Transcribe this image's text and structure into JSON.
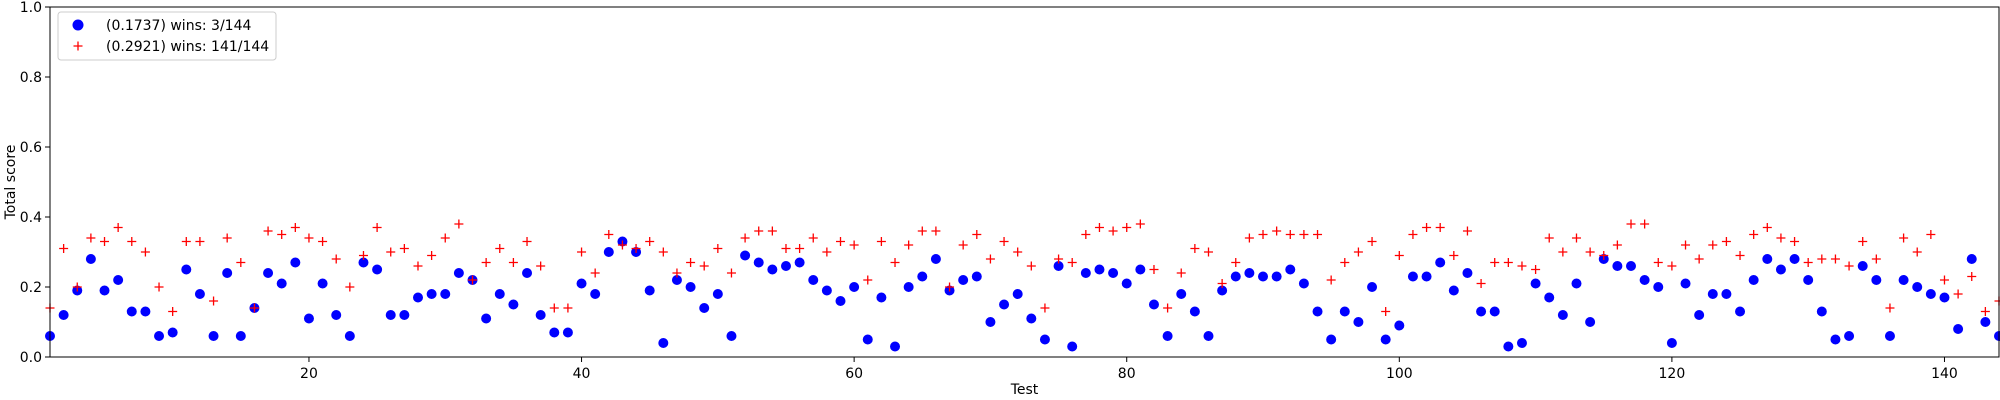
{
  "chart_data": {
    "type": "scatter",
    "xlabel": "Test",
    "ylabel": "Total score",
    "xlim": [
      1,
      144
    ],
    "ylim": [
      0,
      1
    ],
    "x_ticks": [
      20,
      40,
      60,
      80,
      100,
      120,
      140
    ],
    "y_ticks": [
      0.0,
      0.2,
      0.4,
      0.6,
      0.8,
      1.0
    ],
    "y_tick_labels": [
      "0.0",
      "0.2",
      "0.4",
      "0.6",
      "0.8",
      "1.0"
    ],
    "legend_position": "top-left",
    "grid": false,
    "series": [
      {
        "name": "(0.1737) wins: 3/144",
        "marker": "circle",
        "color": "#0000ff",
        "values": [
          0.06,
          0.12,
          0.19,
          0.28,
          0.19,
          0.22,
          0.13,
          0.13,
          0.06,
          0.07,
          0.25,
          0.18,
          0.06,
          0.24,
          0.06,
          0.14,
          0.24,
          0.21,
          0.27,
          0.11,
          0.21,
          0.12,
          0.06,
          0.27,
          0.25,
          0.12,
          0.12,
          0.17,
          0.18,
          0.18,
          0.24,
          0.22,
          0.11,
          0.18,
          0.15,
          0.24,
          0.12,
          0.07,
          0.07,
          0.21,
          0.18,
          0.3,
          0.33,
          0.3,
          0.19,
          0.04,
          0.22,
          0.2,
          0.14,
          0.18,
          0.06,
          0.29,
          0.27,
          0.25,
          0.26,
          0.27,
          0.22,
          0.19,
          0.16,
          0.2,
          0.05,
          0.17,
          0.03,
          0.2,
          0.23,
          0.28,
          0.19,
          0.22,
          0.23,
          0.1,
          0.15,
          0.18,
          0.11,
          0.05,
          0.26,
          0.03,
          0.24,
          0.25,
          0.24,
          0.21,
          0.25,
          0.15,
          0.06,
          0.18,
          0.13,
          0.06,
          0.19,
          0.23,
          0.24,
          0.23,
          0.23,
          0.25,
          0.21,
          0.13,
          0.05,
          0.13,
          0.1,
          0.2,
          0.05,
          0.09,
          0.23,
          0.23,
          0.27,
          0.19,
          0.24,
          0.13,
          0.13,
          0.03,
          0.04,
          0.21,
          0.17,
          0.12,
          0.21,
          0.1,
          0.28,
          0.26,
          0.26,
          0.22,
          0.2,
          0.04,
          0.21,
          0.12,
          0.18,
          0.18,
          0.13,
          0.22,
          0.28,
          0.25,
          0.28,
          0.22,
          0.13,
          0.05,
          0.06,
          0.26,
          0.22,
          0.06,
          0.22,
          0.2,
          0.18,
          0.17,
          0.08,
          0.28,
          0.1,
          0.06
        ]
      },
      {
        "name": "(0.2921) wins: 141/144",
        "marker": "plus",
        "color": "#ff0000",
        "values": [
          0.14,
          0.31,
          0.2,
          0.34,
          0.33,
          0.37,
          0.33,
          0.3,
          0.2,
          0.13,
          0.33,
          0.33,
          0.16,
          0.34,
          0.27,
          0.14,
          0.36,
          0.35,
          0.37,
          0.34,
          0.33,
          0.28,
          0.2,
          0.29,
          0.37,
          0.3,
          0.31,
          0.26,
          0.29,
          0.34,
          0.38,
          0.22,
          0.27,
          0.31,
          0.27,
          0.33,
          0.26,
          0.14,
          0.14,
          0.3,
          0.24,
          0.35,
          0.32,
          0.31,
          0.33,
          0.3,
          0.24,
          0.27,
          0.26,
          0.31,
          0.24,
          0.34,
          0.36,
          0.36,
          0.31,
          0.31,
          0.34,
          0.3,
          0.33,
          0.32,
          0.22,
          0.33,
          0.27,
          0.32,
          0.36,
          0.36,
          0.2,
          0.32,
          0.35,
          0.28,
          0.33,
          0.3,
          0.26,
          0.14,
          0.28,
          0.27,
          0.35,
          0.37,
          0.36,
          0.37,
          0.38,
          0.25,
          0.14,
          0.24,
          0.31,
          0.3,
          0.21,
          0.27,
          0.34,
          0.35,
          0.36,
          0.35,
          0.35,
          0.35,
          0.22,
          0.27,
          0.3,
          0.33,
          0.13,
          0.29,
          0.35,
          0.37,
          0.37,
          0.29,
          0.36,
          0.21,
          0.27,
          0.27,
          0.26,
          0.25,
          0.34,
          0.3,
          0.34,
          0.3,
          0.29,
          0.32,
          0.38,
          0.38,
          0.27,
          0.26,
          0.32,
          0.28,
          0.32,
          0.33,
          0.29,
          0.35,
          0.37,
          0.34,
          0.33,
          0.27,
          0.28,
          0.28,
          0.26,
          0.33,
          0.28,
          0.14,
          0.34,
          0.3,
          0.35,
          0.22,
          0.18,
          0.23,
          0.13,
          0.16
        ]
      }
    ]
  }
}
